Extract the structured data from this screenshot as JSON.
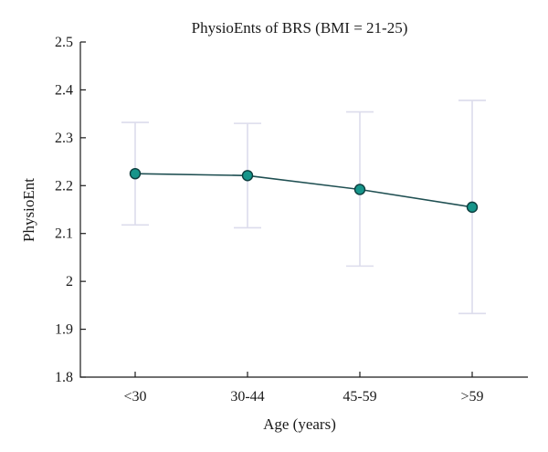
{
  "chart_data": {
    "type": "line",
    "title": "PhysioEnts of BRS (BMI = 21-25)",
    "xlabel": "Age (years)",
    "ylabel": "PhysioEnt",
    "categories": [
      "<30",
      "30-44",
      "45-59",
      ">59"
    ],
    "ylim": [
      1.8,
      2.5
    ],
    "yticks": [
      1.8,
      1.9,
      2,
      2.1,
      2.2,
      2.3,
      2.4,
      2.5
    ],
    "ytick_labels": [
      "1.8",
      "1.9",
      "2",
      "2.1",
      "2.2",
      "2.3",
      "2.4",
      "2.5"
    ],
    "series": [
      {
        "values": [
          2.225,
          2.221,
          2.192,
          2.155
        ],
        "error_low": [
          2.118,
          2.112,
          2.032,
          1.933
        ],
        "error_high": [
          2.332,
          2.33,
          2.354,
          2.378
        ]
      }
    ],
    "grid": false,
    "colors": {
      "line": "#1f4f52",
      "marker": "#16958a",
      "error_bar": "#dcdcec"
    }
  }
}
